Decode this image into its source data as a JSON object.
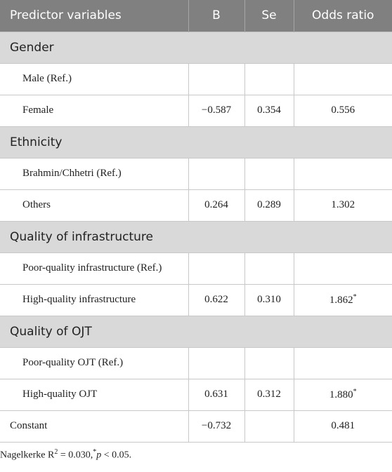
{
  "table": {
    "header": [
      "Predictor variables",
      "B",
      "Se",
      "Odds ratio"
    ],
    "sections": [
      {
        "title": "Gender",
        "rows": [
          [
            "Male (Ref.)",
            null,
            null,
            null
          ],
          [
            "Female",
            "−0.587",
            "0.354",
            "0.556"
          ]
        ]
      },
      {
        "title": "Ethnicity",
        "rows": [
          [
            "Brahmin/Chhetri (Ref.)",
            null,
            null,
            null
          ],
          [
            "Others",
            "0.264",
            "0.289",
            "1.302"
          ]
        ]
      },
      {
        "title": "Quality of infrastructure",
        "rows": [
          [
            "Poor-quality infrastructure (Ref.)",
            null,
            null,
            null
          ],
          [
            "High-quality infrastructure",
            "0.622",
            "0.310",
            {
              "text": "1.862",
              "sup": "*"
            }
          ]
        ]
      },
      {
        "title": "Quality of OJT",
        "rows": [
          [
            "Poor-quality OJT (Ref.)",
            null,
            null,
            null
          ],
          [
            "High-quality OJT",
            "0.631",
            "0.312",
            {
              "text": "1.880",
              "sup": "*"
            }
          ]
        ]
      }
    ],
    "constant": [
      "Constant",
      "−0.732",
      null,
      "0.481"
    ]
  },
  "footnote": {
    "parts": [
      "Nagelkerke R",
      "2",
      " = 0.030,",
      "*",
      "p",
      " < 0.05."
    ]
  }
}
